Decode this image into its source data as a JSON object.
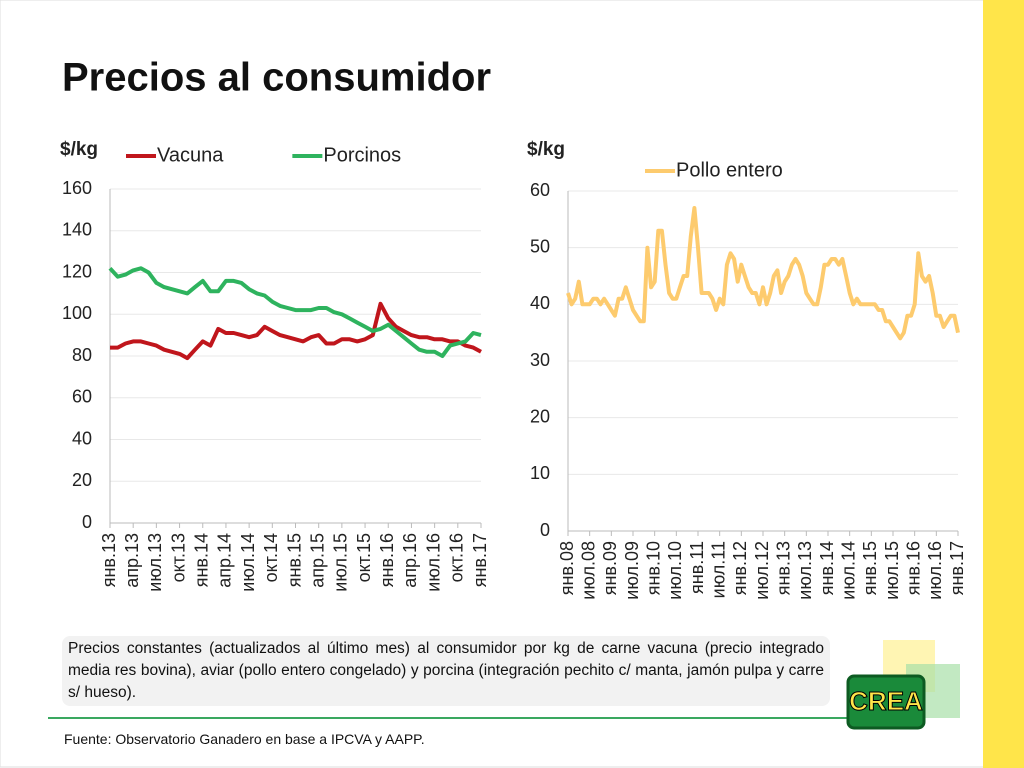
{
  "title": "Precios al consumidor",
  "chart_data": [
    {
      "type": "line",
      "ylabel": "$/kg",
      "ylim": [
        0,
        160
      ],
      "yticks": [
        0,
        20,
        40,
        60,
        80,
        100,
        120,
        140,
        160
      ],
      "grid": true,
      "legend": "top",
      "categories": [
        "янв.13",
        null,
        null,
        "апр.13",
        null,
        null,
        "июл.13",
        null,
        null,
        "окт.13",
        null,
        null,
        "янв.14",
        null,
        null,
        "апр.14",
        null,
        null,
        "июл.14",
        null,
        null,
        "окт.14",
        null,
        null,
        "янв.15",
        null,
        null,
        "апр.15",
        null,
        null,
        "июл.15",
        null,
        null,
        "окт.15",
        null,
        null,
        "янв.16",
        null,
        null,
        "апр.16",
        null,
        null,
        "июл.16",
        null,
        null,
        "окт.16",
        null,
        null,
        "янв.17"
      ],
      "series": [
        {
          "name": "Vacuna",
          "color": "#c0161c",
          "values": [
            84,
            84,
            86,
            87,
            87,
            86,
            85,
            83,
            82,
            81,
            79,
            83,
            87,
            85,
            93,
            91,
            91,
            90,
            89,
            90,
            94,
            92,
            90,
            89,
            88,
            87,
            89,
            90,
            86,
            86,
            88,
            88,
            87,
            88,
            90,
            105,
            98,
            94,
            92,
            90,
            89,
            89,
            88,
            88,
            87,
            87,
            85,
            84,
            82
          ]
        },
        {
          "name": "Porcinos",
          "color": "#2eb35e",
          "values": [
            122,
            118,
            119,
            121,
            122,
            120,
            115,
            113,
            112,
            111,
            110,
            113,
            116,
            111,
            111,
            116,
            116,
            115,
            112,
            110,
            109,
            106,
            104,
            103,
            102,
            102,
            102,
            103,
            103,
            101,
            100,
            98,
            96,
            94,
            92,
            93,
            95,
            92,
            89,
            86,
            83,
            82,
            82,
            80,
            85,
            86,
            87,
            91,
            90
          ]
        }
      ]
    },
    {
      "type": "line",
      "ylabel": "$/kg",
      "ylim": [
        0,
        60
      ],
      "yticks": [
        0,
        10,
        20,
        30,
        40,
        50,
        60
      ],
      "grid": true,
      "legend": "top",
      "categories": [
        "янв.08",
        null,
        null,
        null,
        null,
        null,
        "июл.08",
        null,
        null,
        null,
        null,
        null,
        "янв.09",
        null,
        null,
        null,
        null,
        null,
        "июл.09",
        null,
        null,
        null,
        null,
        null,
        "янв.10",
        null,
        null,
        null,
        null,
        null,
        "июл.10",
        null,
        null,
        null,
        null,
        null,
        "янв.11",
        null,
        null,
        null,
        null,
        null,
        "июл.11",
        null,
        null,
        null,
        null,
        null,
        "янв.12",
        null,
        null,
        null,
        null,
        null,
        "июл.12",
        null,
        null,
        null,
        null,
        null,
        "янв.13",
        null,
        null,
        null,
        null,
        null,
        "июл.13",
        null,
        null,
        null,
        null,
        null,
        "янв.14",
        null,
        null,
        null,
        null,
        null,
        "июл.14",
        null,
        null,
        null,
        null,
        null,
        "янв.15",
        null,
        null,
        null,
        null,
        null,
        "июл.15",
        null,
        null,
        null,
        null,
        null,
        "янв.16",
        null,
        null,
        null,
        null,
        null,
        "июл.16",
        null,
        null,
        null,
        null,
        null,
        "янв.17"
      ],
      "series": [
        {
          "name": "Pollo entero",
          "color": "#fdcb6e",
          "values": [
            42,
            40,
            41,
            44,
            40,
            40,
            40,
            41,
            41,
            40,
            41,
            40,
            39,
            38,
            41,
            41,
            43,
            41,
            39,
            38,
            37,
            37,
            50,
            43,
            44,
            53,
            53,
            47,
            42,
            41,
            41,
            43,
            45,
            45,
            52,
            57,
            50,
            42,
            42,
            42,
            41,
            39,
            41,
            40,
            47,
            49,
            48,
            44,
            47,
            45,
            43,
            42,
            42,
            40,
            43,
            40,
            42,
            45,
            46,
            42,
            44,
            45,
            47,
            48,
            47,
            45,
            42,
            41,
            40,
            40,
            43,
            47,
            47,
            48,
            48,
            47,
            48,
            45,
            42,
            40,
            41,
            40,
            40,
            40,
            40,
            40,
            39,
            39,
            37,
            37,
            36,
            35,
            34,
            35,
            38,
            38,
            40,
            49,
            45,
            44,
            45,
            42,
            38,
            38,
            36,
            37,
            38,
            38,
            35
          ]
        }
      ]
    }
  ],
  "caption": "Precios constantes (actualizados al último mes) al consumidor por kg de carne vacuna (precio integrado media res bovina), aviar (pollo entero congelado) y porcina (integración pechito c/ manta, jamón pulpa y carre s/ hueso).",
  "source": "Fuente: Observatorio Ganadero en base a IPCVA y AAPP.",
  "logo": "CREA"
}
